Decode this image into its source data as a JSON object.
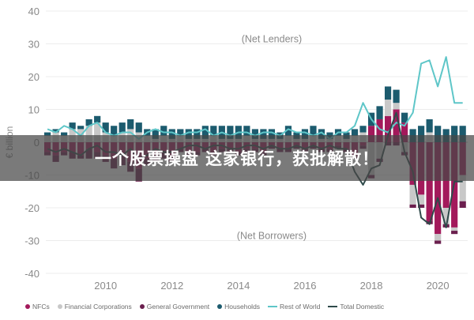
{
  "chart_data": {
    "type": "bar",
    "stacked": true,
    "title": "",
    "xlabel": "",
    "ylabel": "€ billion",
    "ylim": [
      -40,
      40
    ],
    "yticks": [
      40,
      30,
      20,
      10,
      0,
      -10,
      -20,
      -30,
      -40
    ],
    "xlim": [
      2008.2,
      2020.9
    ],
    "xticks": [
      2010,
      2012,
      2014,
      2016,
      2018,
      2020
    ],
    "grid": true,
    "legend_position": "bottom",
    "annotations": [
      {
        "text": "(Net Lenders)",
        "x": 2015.0,
        "y": 30.5
      },
      {
        "text": "(Net Borrowers)",
        "x": 2015.0,
        "y": -29.5
      }
    ],
    "x": [
      2008.25,
      2008.5,
      2008.75,
      2009.0,
      2009.25,
      2009.5,
      2009.75,
      2010.0,
      2010.25,
      2010.5,
      2010.75,
      2011.0,
      2011.25,
      2011.5,
      2011.75,
      2012.0,
      2012.25,
      2012.5,
      2012.75,
      2013.0,
      2013.25,
      2013.5,
      2013.75,
      2014.0,
      2014.25,
      2014.5,
      2014.75,
      2015.0,
      2015.25,
      2015.5,
      2015.75,
      2016.0,
      2016.25,
      2016.5,
      2016.75,
      2017.0,
      2017.25,
      2017.5,
      2017.75,
      2018.0,
      2018.25,
      2018.5,
      2018.75,
      2019.0,
      2019.25,
      2019.5,
      2019.75,
      2020.0,
      2020.25,
      2020.5,
      2020.75
    ],
    "series": [
      {
        "name": "NFCs",
        "kind": "bar",
        "color": "#a3195b",
        "values": [
          -3,
          -4,
          -3,
          -3,
          -4,
          -2,
          -3,
          -4,
          -5,
          -4,
          -6,
          -8,
          -5,
          -4,
          -3,
          -4,
          -2,
          -3,
          -3,
          -2,
          -3,
          -2,
          -2,
          -3,
          -2,
          -2,
          -3,
          -1,
          -2,
          -2,
          -1,
          -2,
          -1,
          -2,
          -2,
          -1,
          -2,
          -4,
          -1,
          5,
          7,
          8,
          10,
          6,
          -13,
          -16,
          -24,
          -28,
          -20,
          -26,
          -10
        ]
      },
      {
        "name": "Financial Corporations",
        "kind": "bar",
        "color": "#c8c8c8",
        "values": [
          2,
          3,
          2,
          4,
          4,
          5,
          6,
          3,
          2,
          3,
          4,
          3,
          2,
          1,
          2,
          1,
          2,
          1,
          1,
          1,
          2,
          1,
          1,
          1,
          2,
          1,
          1,
          1,
          1,
          2,
          1,
          1,
          2,
          1,
          1,
          2,
          1,
          2,
          3,
          -10,
          -5,
          5,
          2,
          -3,
          -6,
          -3,
          3,
          -2,
          -5,
          -1,
          -8
        ]
      },
      {
        "name": "General Government",
        "kind": "bar",
        "color": "#6b1f4e",
        "values": [
          -1,
          -2,
          -1,
          -2,
          -1,
          -3,
          -2,
          -2,
          -3,
          -3,
          -3,
          -4,
          -2,
          -2,
          -2,
          -2,
          -1,
          -1,
          -1,
          -1,
          -1,
          -1,
          -1,
          -1,
          -1,
          -1,
          -1,
          -1,
          -1,
          -1,
          -1,
          -1,
          -1,
          -1,
          -1,
          -1,
          -1,
          -1,
          -1,
          -1,
          -1,
          -1,
          -1,
          -1,
          -1,
          -1,
          -1,
          -1,
          -1,
          -1,
          -2
        ]
      },
      {
        "name": "Households",
        "kind": "bar",
        "color": "#1c5b6e",
        "values": [
          1,
          1,
          1,
          2,
          1,
          2,
          2,
          3,
          3,
          3,
          3,
          3,
          2,
          3,
          3,
          3,
          2,
          3,
          3,
          4,
          3,
          4,
          4,
          4,
          3,
          3,
          3,
          3,
          2,
          3,
          2,
          3,
          3,
          3,
          2,
          2,
          2,
          2,
          2,
          4,
          4,
          4,
          4,
          3,
          4,
          5,
          4,
          5,
          4,
          5,
          5
        ]
      },
      {
        "name": "Rest of World",
        "kind": "line",
        "color": "#5ec6c8",
        "values": [
          4,
          3,
          5,
          4,
          2,
          5,
          6,
          3,
          2,
          3,
          3,
          1,
          3,
          4,
          3,
          3,
          2,
          3,
          3,
          4,
          2,
          3,
          2,
          3,
          3,
          2,
          3,
          3,
          2,
          4,
          3,
          3,
          2,
          3,
          1,
          3,
          3,
          5,
          12,
          7,
          4,
          3,
          6,
          5,
          9,
          24,
          25,
          17,
          26,
          12,
          12
        ]
      },
      {
        "name": "Total Domestic",
        "kind": "line",
        "color": "#2f4a4a",
        "values": [
          -2,
          -3,
          -2,
          -3,
          -4,
          -2,
          -1,
          -3,
          -3,
          -4,
          -2,
          -5,
          -4,
          -2,
          -3,
          -3,
          -2,
          -1,
          -1,
          -2,
          -1,
          -1,
          -2,
          -2,
          -1,
          -1,
          -2,
          -1,
          -2,
          -2,
          -1,
          -2,
          -1,
          -2,
          -1,
          -2,
          -2,
          -9,
          -13,
          -8,
          -7,
          2,
          9,
          -3,
          -9,
          -23,
          -25,
          -17,
          -26,
          -12,
          -12
        ]
      }
    ]
  },
  "banner": {
    "text": "一个股票操盘 这家银行，获批解散！"
  },
  "legend": {
    "items": [
      {
        "label": "NFCs",
        "color": "#a3195b",
        "kind": "dot"
      },
      {
        "label": "Financial Corporations",
        "color": "#c8c8c8",
        "kind": "dot"
      },
      {
        "label": "General Government",
        "color": "#6b1f4e",
        "kind": "dot"
      },
      {
        "label": "Households",
        "color": "#1c5b6e",
        "kind": "dot"
      },
      {
        "label": "Rest of World",
        "color": "#5ec6c8",
        "kind": "line"
      },
      {
        "label": "Total Domestic",
        "color": "#2f4a4a",
        "kind": "line"
      }
    ]
  }
}
